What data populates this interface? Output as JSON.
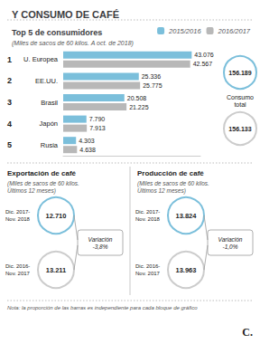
{
  "chart_data": [
    {
      "type": "bar",
      "orientation": "horizontal",
      "title": "Y CONSUMO DE CAFÉ",
      "subtitle": "Top 5 de consumidores",
      "categories": [
        "U. Europea",
        "EE.UU.",
        "Brasil",
        "Japón",
        "Rusia"
      ],
      "series": [
        {
          "name": "2015/2016",
          "color": "#7bbfdb",
          "values": [
            43.076,
            25.336,
            20.508,
            7.79,
            4.303
          ],
          "value_labels": [
            "43.076",
            "25.336",
            "20.508",
            "7.790",
            "4.303"
          ]
        },
        {
          "name": "2016/2017",
          "color": "#b8b8b8",
          "values": [
            42.567,
            25.775,
            21.225,
            7.913,
            4.638
          ],
          "value_labels": [
            "42.567",
            "25.775",
            "21.225",
            "7.913",
            "4.638"
          ]
        }
      ],
      "xlim": [
        0,
        46
      ],
      "tick_labels": false,
      "grid": false,
      "legend": "top right",
      "data_labels": true,
      "annotations": [
        {
          "text": "(Miles de sacos de 60 kilos. A oct. de 2018)"
        },
        {
          "texts": [
            "1",
            "2",
            "3",
            "4",
            "5"
          ]
        },
        {
          "text": "Consumo\ntotal",
          "values": [
            156.189,
            156.133
          ],
          "value_labels": [
            "156.189",
            "156.133"
          ],
          "colors": [
            "#7bbfdb",
            "#cccccc"
          ]
        },
        {
          "text": "Nota: la proporción de las barras es independiente para cada bloque de gráfico"
        },
        {
          "text": "C."
        }
      ]
    },
    {
      "type": "comparison",
      "title": "Exportación de café",
      "subtitle": "(Miles de sacos de 60 kilos.\nÚltimos 12 meses)",
      "categories": [
        "Dic. 2017-\nNov. 2018",
        "Dic. 2016-\nNov. 2017"
      ],
      "values": [
        12.71,
        13.211
      ],
      "value_labels": [
        "12.710",
        "13.211"
      ],
      "colors": [
        "#7bbfdb",
        "#cccccc"
      ],
      "annotations": [
        "Variación\n-3,8%"
      ]
    },
    {
      "type": "comparison",
      "title": "Producción de café",
      "subtitle": "(Miles de sacos de 60 kilos.\nÚltimos 12 meses)",
      "categories": [
        "Dic. 2017-\nNov. 2018",
        "Dic. 2016-\nNov. 2017"
      ],
      "values": [
        13.824,
        13.963
      ],
      "value_labels": [
        "13.824",
        "13.963"
      ],
      "colors": [
        "#7bbfdb",
        "#cccccc"
      ],
      "annotations": [
        "Variación\n-1,0%"
      ]
    }
  ]
}
